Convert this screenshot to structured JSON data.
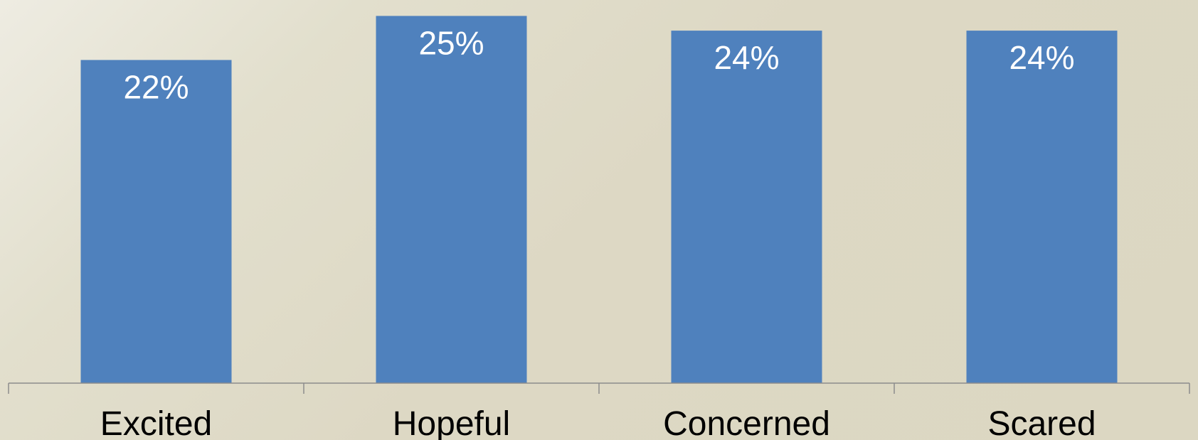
{
  "chart_data": {
    "type": "bar",
    "categories": [
      "Excited",
      "Hopeful",
      "Concerned",
      "Scared"
    ],
    "values": [
      22,
      25,
      24,
      24
    ],
    "data_labels": [
      "22%",
      "25%",
      "24%",
      "24%"
    ],
    "title": "",
    "xlabel": "",
    "ylabel": "",
    "ylim": [
      0,
      25.6
    ],
    "grid": false,
    "legend": "none",
    "bar_color": "#4f81bd",
    "axis_color": "#8c8c8c"
  }
}
